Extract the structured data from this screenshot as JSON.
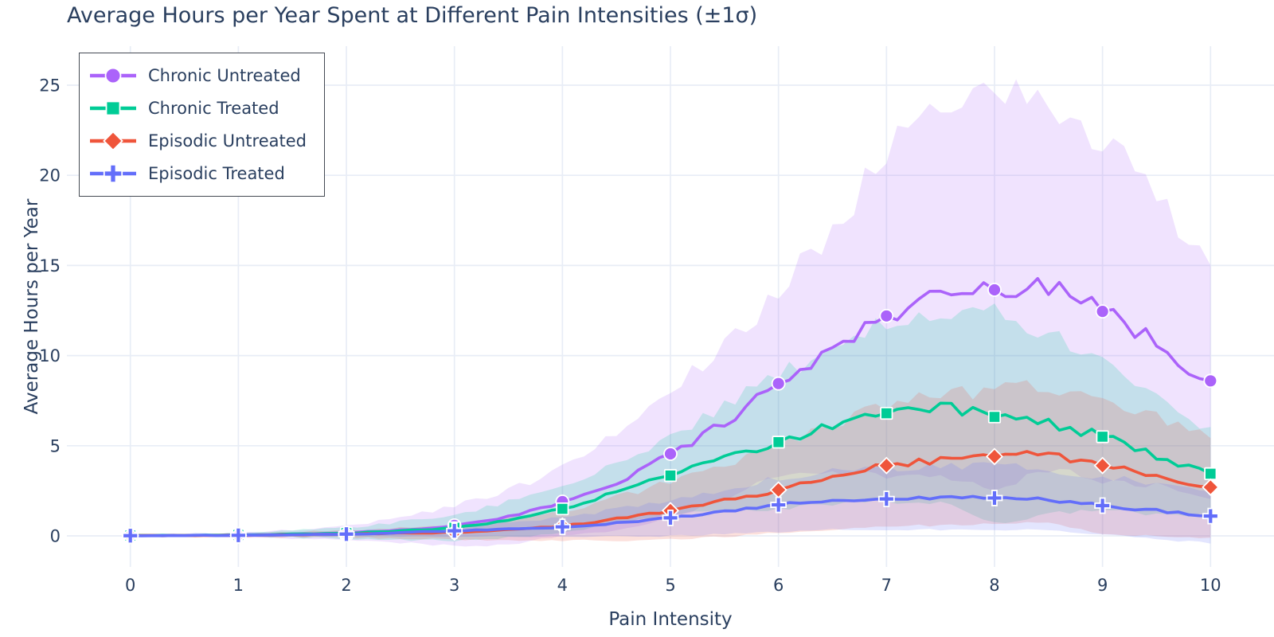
{
  "title": "Average Hours per Year Spent at Different Pain Intensities (±1σ)",
  "colors": {
    "text": "#2a3f5f",
    "grid": "#e8edf6",
    "background": "#ffffff",
    "legend_border": "#444a53",
    "chronic_untreated": "#AB63FA",
    "chronic_treated": "#00CC96",
    "episodic_untreated": "#EF553B",
    "episodic_treated": "#636EFA"
  },
  "axes": {
    "x_label": "Pain Intensity",
    "y_label": "Average Hours per Year",
    "x_ticks": [
      0,
      1,
      2,
      3,
      4,
      5,
      6,
      7,
      8,
      9,
      10
    ],
    "y_ticks": [
      0,
      5,
      10,
      15,
      20,
      25
    ]
  },
  "chart_data": {
    "type": "line",
    "title": "Average Hours per Year Spent at Different Pain Intensities (±1σ)",
    "xlabel": "Pain Intensity",
    "ylabel": "Average Hours per Year",
    "xlim": [
      -0.6,
      10.6
    ],
    "ylim": [
      -1.7,
      27.2
    ],
    "grid": true,
    "legend_position": "top-left",
    "band": "mean ± 1 std dev, shaded, fill opacity 0.18",
    "x": [
      0,
      0.5,
      1,
      1.5,
      2,
      2.5,
      3,
      3.5,
      4,
      4.5,
      5,
      5.5,
      6,
      6.5,
      7,
      7.5,
      8,
      8.5,
      9,
      9.5,
      10
    ],
    "series": [
      {
        "name": "Chronic Untreated",
        "color": "#AB63FA",
        "marker": "circle",
        "mean": [
          0.02,
          0.03,
          0.05,
          0.1,
          0.18,
          0.32,
          0.58,
          1.05,
          1.9,
          3.0,
          4.55,
          6.3,
          8.45,
          10.3,
          12.2,
          13.35,
          13.65,
          14.0,
          12.45,
          10.7,
          8.6
        ],
        "sd": [
          0.05,
          0.08,
          0.12,
          0.25,
          0.4,
          0.7,
          1.1,
          1.5,
          1.9,
          2.7,
          3.5,
          4.3,
          5.2,
          6.8,
          8.9,
          10.0,
          11.0,
          10.3,
          9.4,
          7.9,
          6.5
        ]
      },
      {
        "name": "Chronic Treated",
        "color": "#00CC96",
        "marker": "square",
        "mean": [
          0.02,
          0.03,
          0.05,
          0.1,
          0.15,
          0.28,
          0.45,
          0.9,
          1.5,
          2.4,
          3.35,
          4.3,
          5.2,
          6.1,
          6.8,
          7.2,
          6.6,
          6.2,
          5.5,
          4.4,
          3.45
        ],
        "sd": [
          0.05,
          0.07,
          0.1,
          0.2,
          0.3,
          0.5,
          0.7,
          1.0,
          1.3,
          1.7,
          2.2,
          2.9,
          3.7,
          4.3,
          4.9,
          5.4,
          5.9,
          5.0,
          4.1,
          3.2,
          2.3
        ]
      },
      {
        "name": "Episodic Untreated",
        "color": "#EF553B",
        "marker": "diamond",
        "mean": [
          0.01,
          0.02,
          0.03,
          0.06,
          0.1,
          0.15,
          0.2,
          0.35,
          0.55,
          0.95,
          1.4,
          1.95,
          2.55,
          3.2,
          3.9,
          4.15,
          4.4,
          4.45,
          3.9,
          3.3,
          2.7
        ],
        "sd": [
          0.03,
          0.05,
          0.08,
          0.14,
          0.2,
          0.3,
          0.4,
          0.6,
          0.8,
          1.2,
          1.6,
          2.0,
          2.4,
          2.9,
          3.4,
          3.55,
          3.7,
          3.75,
          3.8,
          3.3,
          2.8
        ]
      },
      {
        "name": "Episodic Treated",
        "color": "#636EFA",
        "marker": "cross",
        "mean": [
          0.01,
          0.02,
          0.03,
          0.06,
          0.1,
          0.18,
          0.28,
          0.38,
          0.5,
          0.72,
          1.0,
          1.35,
          1.72,
          1.95,
          2.05,
          2.1,
          2.1,
          2.0,
          1.68,
          1.4,
          1.1
        ],
        "sd": [
          0.03,
          0.045,
          0.06,
          0.1,
          0.15,
          0.22,
          0.3,
          0.42,
          0.55,
          0.75,
          1.0,
          1.25,
          1.5,
          1.6,
          1.7,
          1.75,
          1.8,
          1.7,
          1.6,
          1.55,
          1.5
        ]
      }
    ]
  }
}
